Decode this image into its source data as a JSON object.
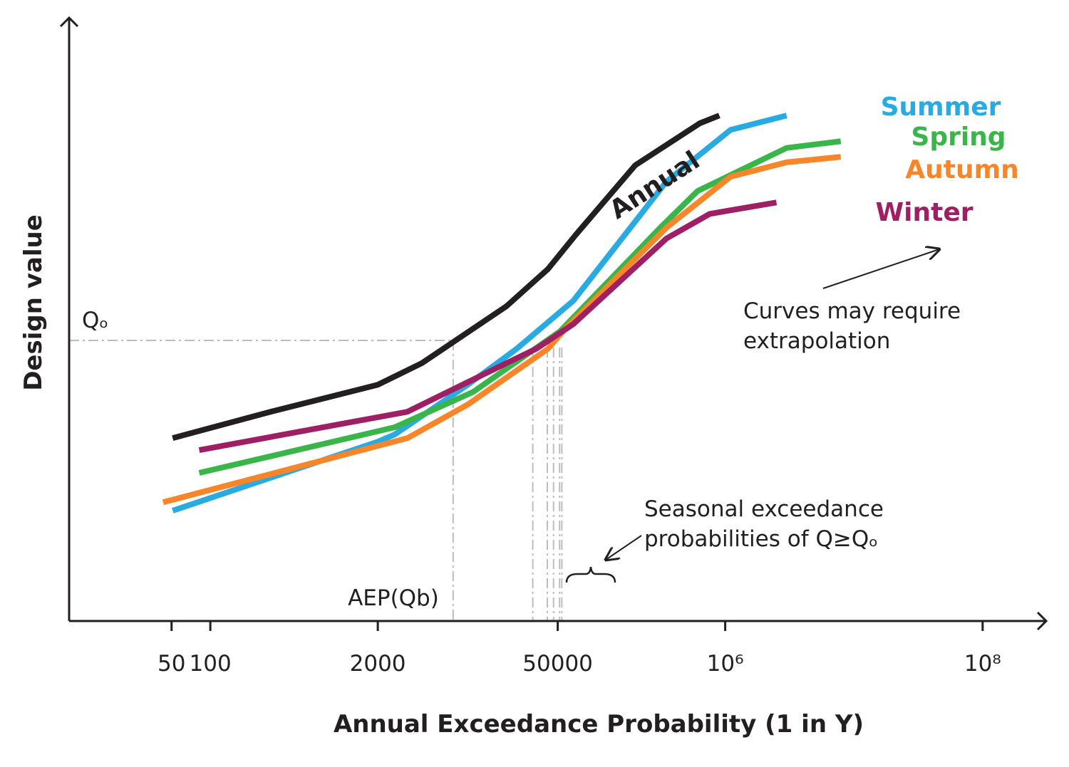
{
  "chart_data": {
    "type": "line",
    "x_label": "Annual Exceedance Probability (1 in Y)",
    "y_label": "Design value",
    "x_scale": "log",
    "xlim": [
      8,
      300000000
    ],
    "ylim": [
      0,
      100
    ],
    "xticks": [
      50,
      100,
      2000,
      50000,
      {
        "value": 1000000,
        "label": "10⁶"
      },
      {
        "value": 100000000,
        "label": "10⁸"
      }
    ],
    "grid": false,
    "series": [
      {
        "name": "Annual",
        "color": "#231f20",
        "x": [
          51,
          295,
          2000,
          4400,
          20000,
          42000,
          69000,
          200000,
          635000,
          900000
        ],
        "values": [
          30.5,
          34.9,
          39.4,
          43,
          52.5,
          58.7,
          64.4,
          76,
          83,
          84.3
        ]
      },
      {
        "name": "Summer",
        "color": "#29abe2",
        "x": [
          51,
          2000,
          2700,
          10000,
          24000,
          66000,
          350000,
          1100000,
          3000000
        ],
        "values": [
          18.4,
          29.9,
          31.1,
          39.4,
          45.4,
          53.4,
          73.3,
          81.9,
          84.3
        ]
      },
      {
        "name": "Spring",
        "color": "#3ab54a",
        "x": [
          82,
          2700,
          11000,
          52000,
          320000,
          610000,
          3000000,
          7900000
        ],
        "values": [
          24.7,
          32.3,
          38.2,
          48.3,
          65.8,
          71.7,
          78.9,
          80
        ]
      },
      {
        "name": "Autumn",
        "color": "#f7862a",
        "x": [
          43,
          3400,
          10000,
          42000,
          57000,
          350000,
          1100000,
          3000000,
          7900000
        ],
        "values": [
          19.8,
          30.5,
          36.1,
          45.4,
          48.7,
          65.6,
          74.1,
          76.5,
          77.4
        ]
      },
      {
        "name": "Winter",
        "color": "#9e1f63",
        "x": [
          82,
          3400,
          20000,
          34000,
          66000,
          350000,
          760000,
          2500000
        ],
        "values": [
          28.5,
          34.9,
          43,
          45.4,
          49.5,
          63.8,
          67.9,
          69.8
        ]
      }
    ],
    "reference_y": {
      "label": "Qₒ",
      "value": 46.8
    },
    "reference_x": {
      "label": "AEP(Qb)",
      "value": 7700
    },
    "seasonal_x": [
      32000,
      41500,
      46400,
      51700,
      53800
    ],
    "annotations": [
      {
        "lines": [
          "Curves may require",
          "extrapolation"
        ]
      },
      {
        "lines": [
          "Seasonal exceedance",
          "probabilities of Q≥Qₒ"
        ]
      }
    ]
  }
}
